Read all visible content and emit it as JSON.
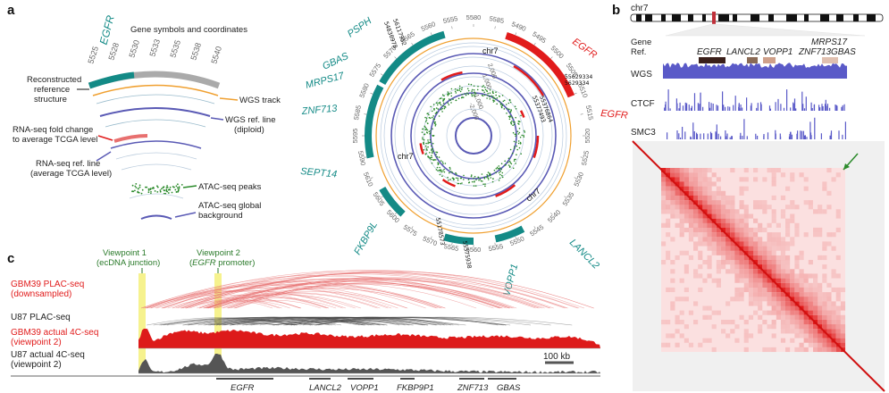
{
  "panels": {
    "a": "a",
    "b": "b",
    "c": "c"
  },
  "legend": {
    "gene_symbol": "EGFR",
    "gene_symbols_title": "Gene symbols and coordinates",
    "coords": [
      "5525",
      "5528",
      "5530",
      "5533",
      "5535",
      "5538",
      "5540"
    ],
    "reconstructed": [
      "Reconstructed",
      "reference",
      "structure"
    ],
    "wgs_track": "WGS track",
    "wgs_ref": [
      "WGS ref. line",
      "(diploid)"
    ],
    "rna_fold": [
      "RNA-seq fold change",
      "to average TCGA level"
    ],
    "rna_ref": [
      "RNA-seq ref. line",
      "(average TCGA level)"
    ],
    "atac_peaks": "ATAC-seq peaks",
    "atac_bg": [
      "ATAC-seq global",
      "background"
    ]
  },
  "circos": {
    "genes_teal": [
      "PSPH",
      "GBAS",
      "MRPS17",
      "ZNF713",
      "SEPT14",
      "FKBP9L",
      "LANCL2",
      "VOPP1"
    ],
    "genes_red": [
      "EGFR",
      "EGFR"
    ],
    "chr_labels": [
      "chr7",
      "chr7",
      "chr7"
    ],
    "coord_labels": [
      "5580",
      "5585",
      "5490",
      "5495",
      "5500",
      "5505",
      "5510",
      "5515",
      "5520",
      "5525",
      "5530",
      "5535",
      "5540",
      "5545",
      "5550",
      "5555",
      "5560",
      "5565",
      "5570",
      "5575",
      "5600",
      "5605",
      "5610",
      "5590",
      "5595",
      "5585",
      "5580",
      "5575",
      "5570",
      "5565",
      "5560",
      "5555"
    ],
    "junctions": [
      "54830978",
      "56117952",
      "55178573",
      "55375938",
      "55629334",
      "5629334",
      "55377493",
      "55376864"
    ],
    "inner_axis": [
      "-2,000",
      "-1,000",
      "1,000",
      "2,000"
    ]
  },
  "panel_b": {
    "chrom": "chr7",
    "gene_ref": [
      "Gene",
      "Ref."
    ],
    "genes_top": [
      "EGFR",
      "LANCL2",
      "VOPP1",
      "MRPS17"
    ],
    "genes_bottom": [
      "ZNF713",
      "GBAS"
    ],
    "tracks": [
      "WGS",
      "CTCF",
      "SMC3"
    ]
  },
  "panel_c": {
    "viewpoint1": [
      "Viewpoint 1",
      "(ecDNA junction)"
    ],
    "viewpoint2": [
      "Viewpoint 2",
      "(",
      "EGFR",
      " promoter)"
    ],
    "tracks": [
      "GBM39 PLAC-seq",
      "(downsampled)",
      "U87 PLAC-seq",
      "GBM39 actual 4C-seq",
      "(viewpoint 2)",
      "U87 actual 4C-seq",
      "(viewpoint 2)"
    ],
    "scale": "100 kb",
    "genes": [
      "EGFR",
      "LANCL2",
      "VOPP1",
      "FKBP9P1",
      "ZNF713",
      "GBAS"
    ]
  },
  "colors": {
    "teal": "#138a86",
    "red": "#e11b1b",
    "purple": "#5a5ab5",
    "orange": "#f0a030",
    "green": "#2a8a2a",
    "grey": "#666666"
  }
}
